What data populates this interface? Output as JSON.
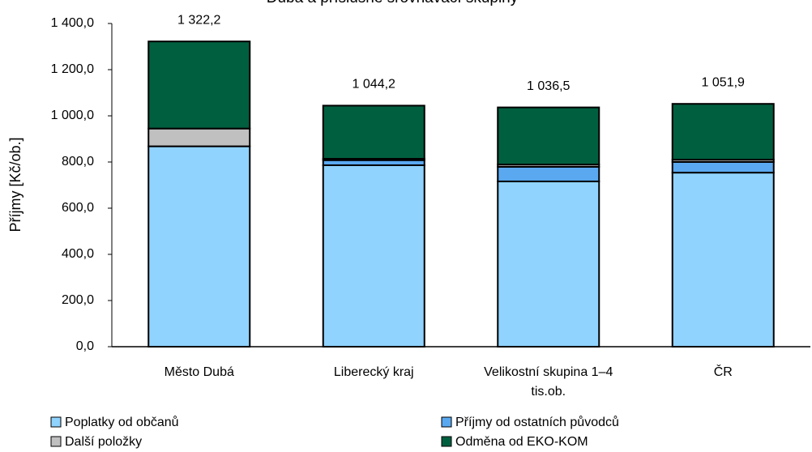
{
  "chart_data": {
    "type": "stacked_bar",
    "title": "Dubá a příslušné srovnávací skupiny",
    "y_label": "Příjmy [Kč/ob.]",
    "categories": [
      "Město Dubá",
      "Liberecký kraj",
      "Velikostní skupina 1–4 tis.ob.",
      "ČR"
    ],
    "series": [
      {
        "name": "Poplatky od občanů",
        "color": "#8fd3fe",
        "values": [
          868,
          786,
          716,
          754
        ]
      },
      {
        "name": "Příjmy od ostatních původců",
        "color": "#5aa9f0",
        "values": [
          0,
          22,
          63,
          46
        ]
      },
      {
        "name": "Další položky",
        "color": "#c0c0c0",
        "values": [
          77,
          6,
          10,
          10
        ]
      },
      {
        "name": "Odměna od EKO-KOM",
        "color": "#005f3f",
        "values": [
          377.2,
          230.2,
          247.5,
          241.9
        ]
      }
    ],
    "totals": [
      1322.2,
      1044.2,
      1036.5,
      1051.9
    ],
    "total_labels": [
      "1 322,2",
      "1 044,2",
      "1 036,5",
      "1 051,9"
    ],
    "ylim": [
      0,
      1400
    ],
    "yticks": [
      {
        "value": 0,
        "label": "0,0"
      },
      {
        "value": 200,
        "label": "200,0"
      },
      {
        "value": 400,
        "label": "400,0"
      },
      {
        "value": 600,
        "label": "600,0"
      },
      {
        "value": 800,
        "label": "800,0"
      },
      {
        "value": 1000,
        "label": "1 000,0"
      },
      {
        "value": 1200,
        "label": "1 200,0"
      },
      {
        "value": 1400,
        "label": "1 400,0"
      }
    ],
    "legend": "bottom"
  }
}
